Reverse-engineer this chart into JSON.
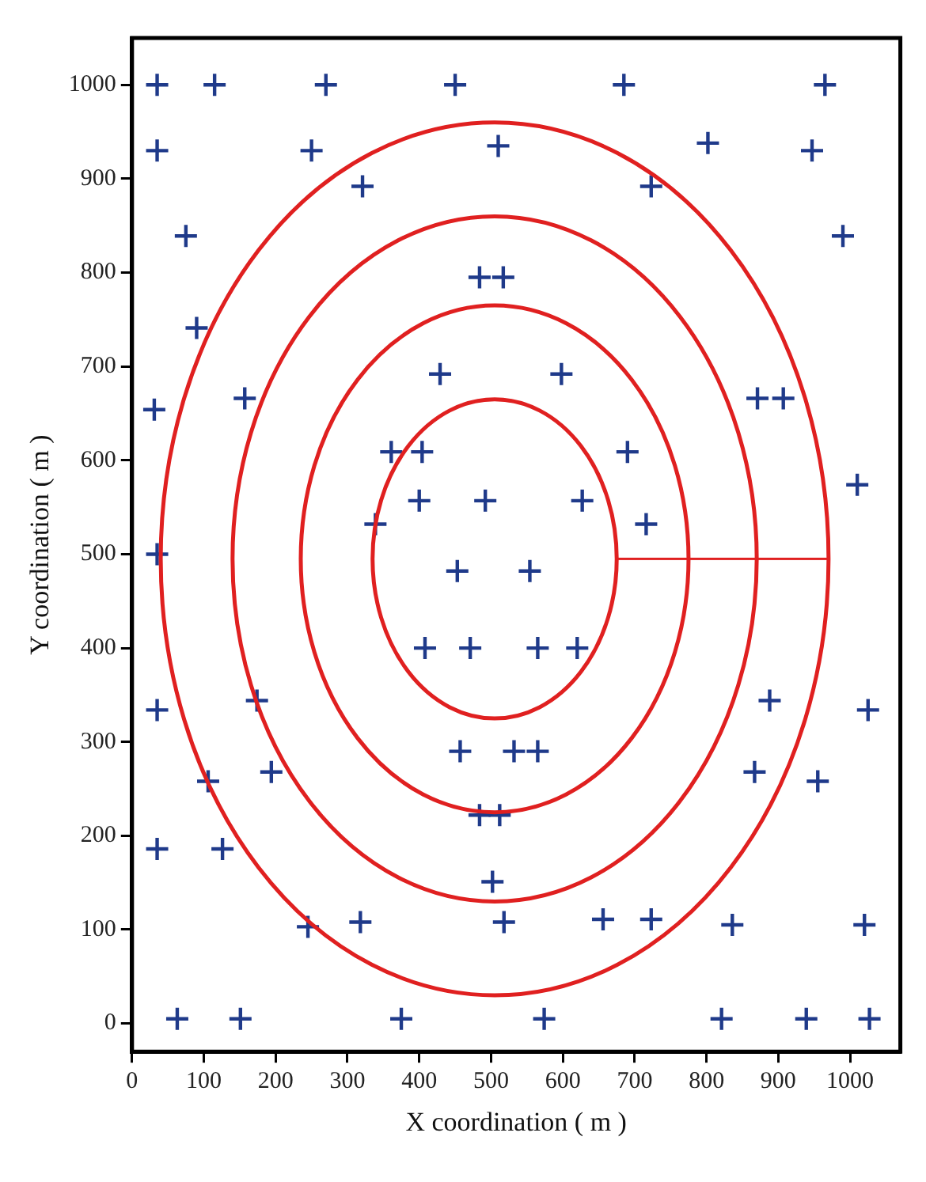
{
  "chart_data": {
    "type": "scatter",
    "xlabel": "X coordination ( m )",
    "ylabel": "Y coordination ( m )",
    "x": [
      35,
      115,
      270,
      450,
      685,
      965,
      35,
      250,
      510,
      802,
      947,
      321,
      723,
      75,
      990,
      484,
      517,
      90,
      429,
      598,
      31,
      157,
      871,
      907,
      361,
      404,
      690,
      1010,
      400,
      492,
      627,
      339,
      716,
      35,
      453,
      554,
      408,
      471,
      565,
      620,
      35,
      174,
      888,
      1025,
      457,
      532,
      565,
      106,
      194,
      867,
      955,
      484,
      512,
      35,
      126,
      502,
      245,
      318,
      518,
      656,
      723,
      836,
      1020,
      63,
      151,
      375,
      574,
      821,
      939,
      1027
    ],
    "values": [
      1000,
      1000,
      1000,
      1000,
      1000,
      1000,
      930,
      930,
      935,
      938,
      930,
      892,
      892,
      839,
      839,
      795,
      795,
      741,
      692,
      692,
      654,
      666,
      666,
      666,
      609,
      609,
      609,
      574,
      557,
      557,
      557,
      532,
      532,
      500,
      482,
      482,
      400,
      400,
      400,
      400,
      334,
      344,
      344,
      334,
      290,
      290,
      290,
      258,
      268,
      268,
      258,
      222,
      222,
      186,
      186,
      151,
      103,
      108,
      108,
      111,
      111,
      105,
      105,
      5,
      5,
      5,
      5,
      5,
      5,
      5
    ],
    "color": "#1f3a8a",
    "marker": "cross",
    "grid": false,
    "legend": false,
    "xlim": [
      0,
      1070
    ],
    "xticks": [
      0,
      100,
      200,
      300,
      400,
      500,
      600,
      700,
      800,
      900,
      1000
    ],
    "ylim": [
      -30,
      1050
    ],
    "yticks": [
      0,
      100,
      200,
      300,
      400,
      500,
      600,
      700,
      800,
      900,
      1000
    ]
  }
}
